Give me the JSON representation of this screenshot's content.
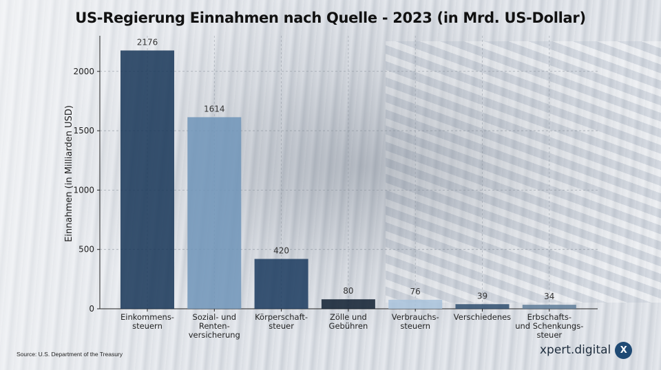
{
  "title": "US-Regierung Einnahmen nach Quelle - 2023 (in Mrd. US-Dollar)",
  "source": "Source: U.S. Department of the Treasury",
  "brand": {
    "name": "xpert.digital",
    "logo_letter": "X"
  },
  "chart_data": {
    "type": "bar",
    "title": "US-Regierung Einnahmen nach Quelle - 2023 (in Mrd. US-Dollar)",
    "ylabel": "Einnahmen (in Milliarden USD)",
    "xlabel": "",
    "ylim": [
      0,
      2300
    ],
    "yticks": [
      0,
      500,
      1000,
      1500,
      2000
    ],
    "grid": true,
    "categories": [
      [
        "Einkommens-",
        "steuern"
      ],
      [
        "Sozial- und",
        "Renten-",
        "versicherung"
      ],
      [
        "Körperschaft-",
        "steuer"
      ],
      [
        "Zölle und",
        "Gebühren"
      ],
      [
        "Verbrauchs-",
        "steuern"
      ],
      [
        "Verschiedenes"
      ],
      [
        "Erbschafts-",
        "und Schenkungs-",
        "steuer"
      ]
    ],
    "values": [
      2176,
      1614,
      420,
      80,
      76,
      39,
      34
    ],
    "colors": [
      "#163557",
      "#6f94b8",
      "#1a3a5e",
      "#0f1e30",
      "#a9c3dc",
      "#2e4d6e",
      "#5f7c99"
    ]
  }
}
